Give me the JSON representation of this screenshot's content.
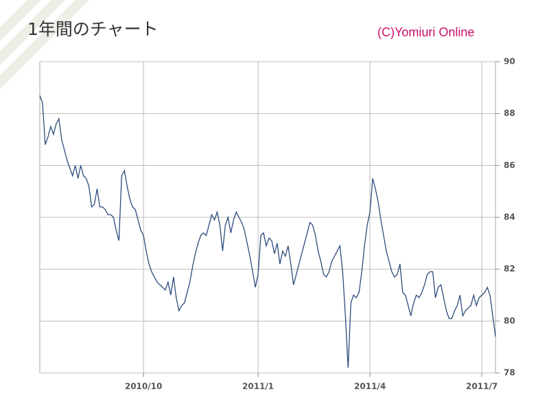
{
  "chart_data": {
    "type": "line",
    "title": "1年間のチャート",
    "credit": "(C)Yomiuri Online",
    "categories": [
      null,
      null,
      null,
      null,
      null,
      null,
      null,
      null,
      null,
      null,
      null,
      null,
      null,
      null,
      null,
      null,
      null,
      null,
      null,
      null,
      null,
      null,
      null,
      null,
      null,
      null,
      null,
      null,
      null,
      null,
      null,
      null,
      null,
      null,
      null,
      null,
      null,
      null,
      "2010/10",
      null,
      null,
      null,
      null,
      null,
      null,
      null,
      null,
      null,
      null,
      null,
      null,
      null,
      null,
      null,
      null,
      null,
      null,
      null,
      null,
      null,
      null,
      null,
      null,
      null,
      null,
      null,
      null,
      null,
      null,
      null,
      null,
      null,
      null,
      null,
      null,
      null,
      null,
      null,
      null,
      null,
      "2011/1",
      null,
      null,
      null,
      null,
      null,
      null,
      null,
      null,
      null,
      null,
      null,
      null,
      null,
      null,
      null,
      null,
      null,
      null,
      null,
      null,
      null,
      null,
      null,
      null,
      null,
      null,
      null,
      null,
      null,
      null,
      null,
      null,
      null,
      null,
      null,
      null,
      null,
      null,
      null,
      null,
      "2011/4",
      null,
      null,
      null,
      null,
      null,
      null,
      null,
      null,
      null,
      null,
      null,
      null,
      null,
      null,
      null,
      null,
      null,
      null,
      null,
      null,
      null,
      null,
      null,
      null,
      null,
      null,
      null,
      null,
      null,
      null,
      null,
      null,
      null,
      null,
      null,
      null,
      null,
      null,
      null,
      null,
      "2011/7",
      null,
      null,
      null,
      null,
      null
    ],
    "values": [
      88.7,
      88.4,
      86.8,
      87.1,
      87.5,
      87.2,
      87.6,
      87.8,
      87.0,
      86.6,
      86.2,
      85.9,
      85.6,
      86.0,
      85.5,
      86.0,
      85.6,
      85.5,
      85.2,
      84.4,
      84.5,
      85.1,
      84.4,
      84.4,
      84.3,
      84.1,
      84.1,
      84.0,
      83.5,
      83.1,
      85.6,
      85.8,
      85.2,
      84.7,
      84.4,
      84.3,
      83.9,
      83.5,
      83.3,
      82.7,
      82.2,
      81.9,
      81.7,
      81.5,
      81.4,
      81.3,
      81.2,
      81.5,
      81.0,
      81.7,
      80.9,
      80.4,
      80.6,
      80.7,
      81.1,
      81.5,
      82.1,
      82.6,
      83.0,
      83.3,
      83.4,
      83.3,
      83.7,
      84.1,
      83.9,
      84.2,
      83.7,
      82.7,
      83.7,
      84.0,
      83.4,
      83.9,
      84.2,
      84.0,
      83.8,
      83.5,
      83.0,
      82.5,
      81.9,
      81.3,
      81.8,
      83.3,
      83.4,
      82.9,
      83.2,
      83.1,
      82.6,
      83.0,
      82.2,
      82.7,
      82.5,
      82.9,
      82.2,
      81.4,
      81.8,
      82.2,
      82.6,
      83.0,
      83.4,
      83.8,
      83.7,
      83.3,
      82.7,
      82.3,
      81.8,
      81.7,
      81.9,
      82.3,
      82.5,
      82.7,
      82.9,
      81.9,
      80.2,
      78.2,
      80.7,
      81.0,
      80.9,
      81.1,
      81.9,
      82.9,
      83.7,
      84.2,
      85.5,
      85.1,
      84.6,
      83.9,
      83.3,
      82.7,
      82.3,
      81.9,
      81.7,
      81.8,
      82.2,
      81.1,
      81.0,
      80.6,
      80.2,
      80.7,
      81.0,
      80.9,
      81.1,
      81.4,
      81.8,
      81.9,
      81.9,
      80.9,
      81.3,
      81.4,
      80.9,
      80.4,
      80.1,
      80.1,
      80.4,
      80.6,
      81.0,
      80.2,
      80.4,
      80.5,
      80.6,
      81.0,
      80.6,
      80.9,
      81.0,
      81.1,
      81.3,
      81.0,
      80.2,
      79.4
    ],
    "color": "#2b4a7a",
    "ylim": [
      78,
      90
    ],
    "yticks": [
      78,
      80,
      82,
      84,
      86,
      88,
      90
    ],
    "grid": true
  }
}
